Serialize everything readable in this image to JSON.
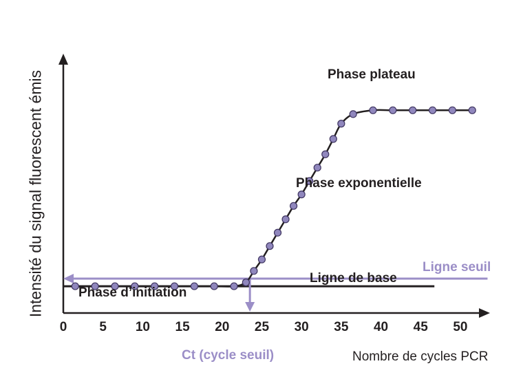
{
  "colors": {
    "curve": "#231f20",
    "axis": "#231f20",
    "threshold": "#9b8ec7",
    "point_fill": "#9087bd",
    "point_stroke": "#3f3560"
  },
  "chart_data": {
    "type": "line",
    "title": "",
    "xlabel": "Nombre de cycles PCR",
    "ylabel": "Intensité du signal fluorescent émis",
    "xlim": [
      0,
      52
    ],
    "x_ticks": [
      0,
      5,
      10,
      15,
      20,
      25,
      30,
      35,
      40,
      45,
      50
    ],
    "y_ticks": [],
    "series": [
      {
        "x": [
          1.5,
          4,
          6.5,
          9,
          11.5,
          14,
          16.5,
          19,
          21.5,
          23,
          24,
          25,
          26,
          27,
          28,
          29,
          30,
          31,
          32,
          33,
          34,
          35,
          36.5,
          39,
          41.5,
          44,
          46.5,
          49,
          51.5
        ],
        "y": [
          0.1,
          0.1,
          0.1,
          0.1,
          0.1,
          0.1,
          0.1,
          0.1,
          0.1,
          0.2,
          0.5,
          0.8,
          1.15,
          1.5,
          1.85,
          2.2,
          2.5,
          2.85,
          3.2,
          3.55,
          3.95,
          4.35,
          4.6,
          4.7,
          4.7,
          4.7,
          4.7,
          4.7,
          4.7
        ]
      }
    ],
    "ylim": [
      -0.6,
      6.0
    ],
    "baseline": {
      "y": 0.1,
      "x_end": 45
    },
    "threshold": {
      "y": 0.3,
      "x_end": 51,
      "ct": 23.5
    },
    "annotations": {
      "plateau": "Phase plateau",
      "exponential": "Phase exponentielle",
      "baseline": "Ligne de base",
      "threshold": "Ligne seuil",
      "initiation": "Phase d’initiation",
      "ct": "Ct (cycle seuil)"
    },
    "grid": false,
    "legend": "none"
  }
}
